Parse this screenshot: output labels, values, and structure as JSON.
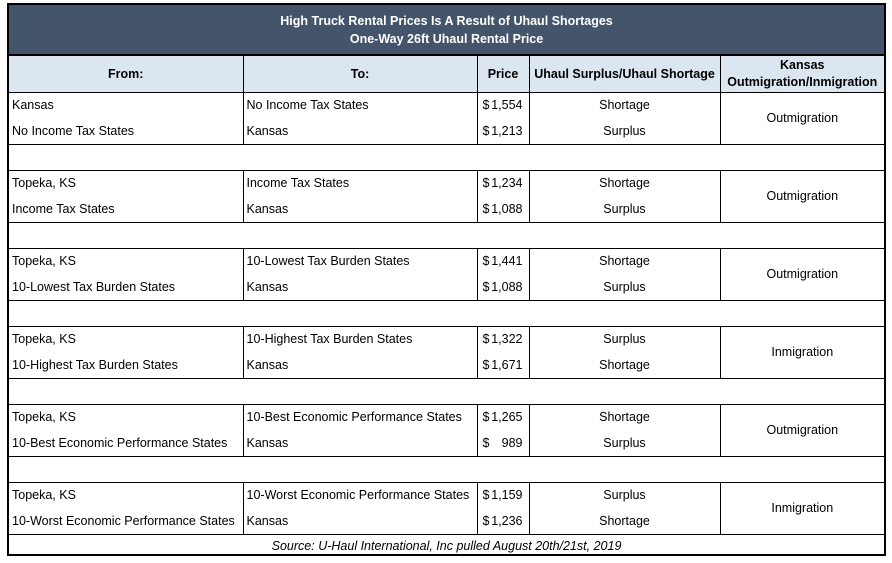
{
  "title": {
    "line1": "High Truck Rental Prices Is A Result of Uhaul Shortages",
    "line2": "One-Way 26ft Uhaul Rental Price"
  },
  "headers": {
    "from": "From:",
    "to": "To:",
    "price": "Price",
    "status": "Uhaul Surplus/Uhaul Shortage",
    "kansas_line1": "Kansas",
    "kansas_line2": "Outmigration/Inmigration"
  },
  "groups": [
    {
      "rows": [
        {
          "from": "Kansas",
          "to": "No Income Tax States",
          "currency": "$",
          "price": "1,554",
          "status": "Shortage"
        },
        {
          "from": "No Income Tax States",
          "to": "Kansas",
          "currency": "$",
          "price": "1,213",
          "status": "Surplus"
        }
      ],
      "kansas": "Outmigration"
    },
    {
      "rows": [
        {
          "from": "Topeka, KS",
          "to": "Income Tax States",
          "currency": "$",
          "price": "1,234",
          "status": "Shortage"
        },
        {
          "from": "Income Tax States",
          "to": "Kansas",
          "currency": "$",
          "price": "1,088",
          "status": "Surplus"
        }
      ],
      "kansas": "Outmigration"
    },
    {
      "rows": [
        {
          "from": "Topeka, KS",
          "to": "10-Lowest Tax Burden States",
          "currency": "$",
          "price": "1,441",
          "status": "Shortage"
        },
        {
          "from": "10-Lowest Tax Burden States",
          "to": "Kansas",
          "currency": "$",
          "price": "1,088",
          "status": "Surplus"
        }
      ],
      "kansas": "Outmigration"
    },
    {
      "rows": [
        {
          "from": "Topeka, KS",
          "to": "10-Highest Tax Burden States",
          "currency": "$",
          "price": "1,322",
          "status": "Surplus"
        },
        {
          "from": "10-Highest Tax Burden States",
          "to": "Kansas",
          "currency": "$",
          "price": "1,671",
          "status": "Shortage"
        }
      ],
      "kansas": "Inmigration"
    },
    {
      "rows": [
        {
          "from": "Topeka, KS",
          "to": "10-Best Economic Performance States",
          "currency": "$",
          "price": "1,265",
          "status": "Shortage"
        },
        {
          "from": "10-Best Economic Performance States",
          "to": "Kansas",
          "currency": "$",
          "price": "989",
          "status": "Surplus"
        }
      ],
      "kansas": "Outmigration"
    },
    {
      "rows": [
        {
          "from": "Topeka, KS",
          "to": "10-Worst Economic Performance States",
          "currency": "$",
          "price": "1,159",
          "status": "Surplus"
        },
        {
          "from": "10-Worst Economic Performance States",
          "to": "Kansas",
          "currency": "$",
          "price": "1,236",
          "status": "Shortage"
        }
      ],
      "kansas": "Inmigration"
    }
  ],
  "source": "Source: U-Haul International, Inc pulled August 20th/21st, 2019",
  "colors": {
    "title_bg": "#44546a",
    "header_bg": "#dce6f1"
  }
}
